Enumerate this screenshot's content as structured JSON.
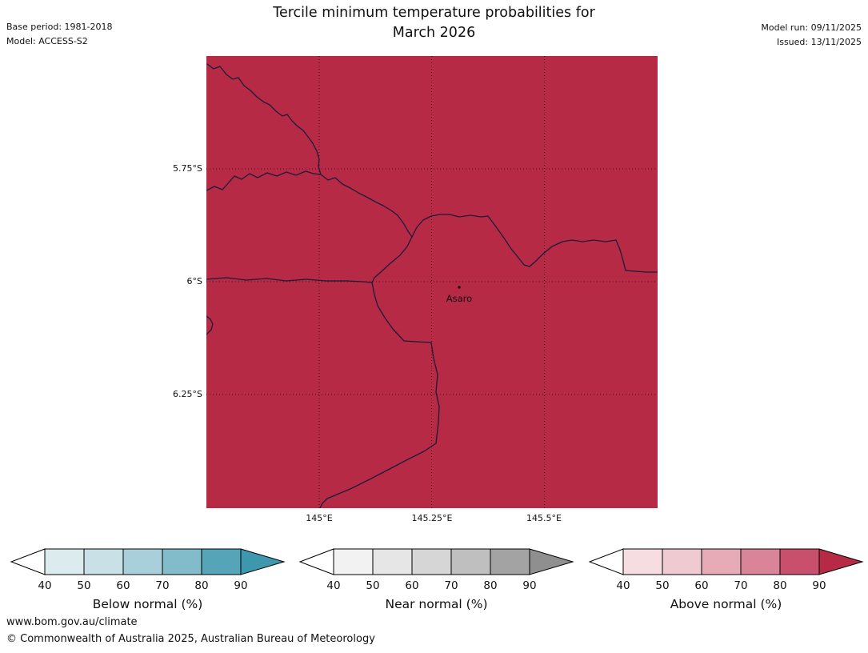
{
  "header": {
    "title_line1": "Tercile minimum temperature probabilities for",
    "title_line2": "March 2026",
    "base_period": "Base period: 1981-2018",
    "model": "Model: ACCESS-S2",
    "model_run": "Model run: 09/11/2025",
    "issued": "Issued: 13/11/2025"
  },
  "map": {
    "fill_color": "#b62a45",
    "border_color": "#1b1b38",
    "place_label": "Asaro",
    "lat_labels": [
      "5.75°S",
      "6°S",
      "6.25°S"
    ],
    "lon_labels": [
      "145°E",
      "145.25°E",
      "145.5°E"
    ]
  },
  "legends": [
    {
      "label": "Below normal (%)",
      "ticks": [
        "40",
        "50",
        "60",
        "70",
        "80",
        "90"
      ],
      "start_color": "#ffffff",
      "segment_colors": [
        "#dcebee",
        "#c8e0e6",
        "#a9d0da",
        "#82bccb",
        "#55a4b8"
      ],
      "arrow_color": "#3d97ad"
    },
    {
      "label": "Near normal (%)",
      "ticks": [
        "40",
        "50",
        "60",
        "70",
        "80",
        "90"
      ],
      "start_color": "#ffffff",
      "segment_colors": [
        "#f2f2f2",
        "#e6e6e6",
        "#d6d6d6",
        "#bfbfbf",
        "#a3a3a3"
      ],
      "arrow_color": "#8f8f8f"
    },
    {
      "label": "Above normal (%)",
      "ticks": [
        "40",
        "50",
        "60",
        "70",
        "80",
        "90"
      ],
      "start_color": "#ffffff",
      "segment_colors": [
        "#f5dde1",
        "#f0cad1",
        "#e7abb8",
        "#da8499",
        "#c8506c"
      ],
      "arrow_color": "#b62a45"
    }
  ],
  "footer": {
    "url": "www.bom.gov.au/climate",
    "copyright": "© Commonwealth of Australia 2025, Australian Bureau of Meteorology"
  }
}
